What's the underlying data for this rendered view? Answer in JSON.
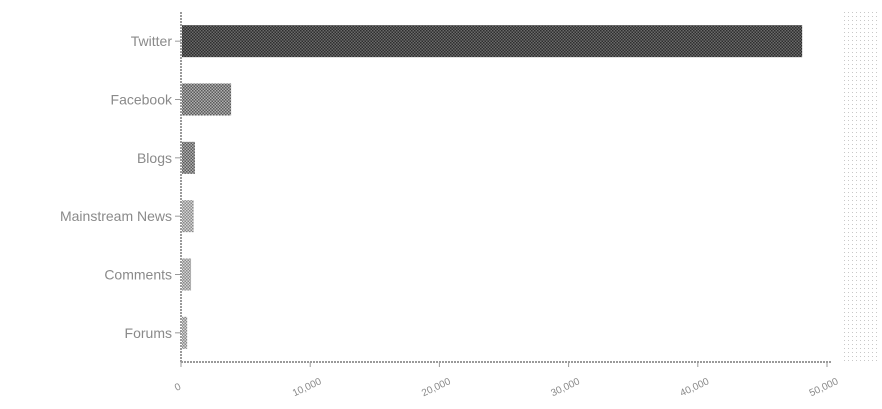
{
  "chart_data": {
    "type": "bar",
    "orientation": "horizontal",
    "categories": [
      "Twitter",
      "Facebook",
      "Blogs",
      "Mainstream News",
      "Comments",
      "Forums"
    ],
    "values": [
      48000,
      3800,
      1000,
      900,
      700,
      400
    ],
    "xlim": [
      0,
      50000
    ],
    "xticks": [
      0,
      10000,
      20000,
      30000,
      40000,
      50000
    ],
    "xtick_labels": [
      "0",
      "10,000",
      "20,000",
      "30,000",
      "40,000",
      "50,000"
    ],
    "title": "",
    "xlabel": "",
    "ylabel": "",
    "grid": false,
    "colors": {
      "bar_dark": "#4a4a4a",
      "bar_mid": "#7d7d7d",
      "bar_light": "#a9a9a9",
      "axis": "#9a9a9a",
      "text": "#8a8a8a"
    }
  }
}
